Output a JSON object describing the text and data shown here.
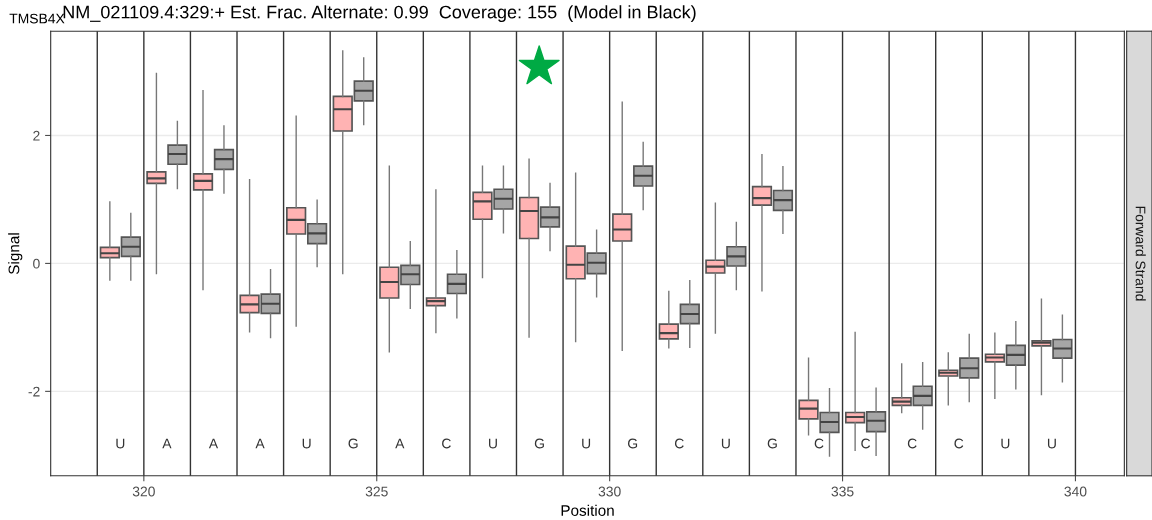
{
  "chart_data": {
    "type": "box",
    "title": "NM_021109.4:329:+ Est. Frac. Alternate: 0.99  Coverage: 155  (Model in Black)",
    "xlabel": "Position",
    "ylabel": "Signal",
    "xlim": [
      318,
      341.05
    ],
    "ylim": [
      -3.32,
      3.63
    ],
    "xticks": [
      320,
      325,
      330,
      335,
      340
    ],
    "yticks": [
      -2,
      0,
      2
    ],
    "grid": "y",
    "series": [
      {
        "color": "#ffb3b3",
        "x": [
          319.27,
          320.27,
          321.27,
          322.27,
          323.27,
          324.27,
          325.27,
          326.27,
          327.27,
          328.27,
          329.27,
          330.27,
          331.27,
          332.27,
          333.27,
          334.27,
          335.27,
          336.27,
          337.27,
          338.27,
          339.27
        ],
        "boxes": [
          {
            "low": -0.26,
            "q1": 0.09,
            "median": 0.16,
            "q3": 0.25,
            "high": 0.96
          },
          {
            "low": -0.16,
            "q1": 1.25,
            "median": 1.33,
            "q3": 1.43,
            "high": 2.97
          },
          {
            "low": -0.41,
            "q1": 1.15,
            "median": 1.29,
            "q3": 1.4,
            "high": 2.7
          },
          {
            "low": -1.07,
            "q1": -0.77,
            "median": -0.64,
            "q3": -0.5,
            "high": 1.31
          },
          {
            "low": -0.98,
            "q1": 0.46,
            "median": 0.68,
            "q3": 0.87,
            "high": 2.3
          },
          {
            "low": -0.16,
            "q1": 2.07,
            "median": 2.41,
            "q3": 2.61,
            "high": 3.32
          },
          {
            "low": -1.38,
            "q1": -0.54,
            "median": -0.29,
            "q3": -0.06,
            "high": 1.52
          },
          {
            "low": -1.08,
            "q1": -0.66,
            "median": -0.59,
            "q3": -0.54,
            "high": 1.15
          },
          {
            "low": -0.22,
            "q1": 0.69,
            "median": 0.97,
            "q3": 1.11,
            "high": 1.52
          },
          {
            "low": -1.15,
            "q1": 0.39,
            "median": 0.82,
            "q3": 1.03,
            "high": 1.63
          },
          {
            "low": -1.22,
            "q1": -0.24,
            "median": -0.02,
            "q3": 0.27,
            "high": 1.41
          },
          {
            "low": -1.36,
            "q1": 0.35,
            "median": 0.53,
            "q3": 0.77,
            "high": 2.52
          },
          {
            "low": -1.32,
            "q1": -1.18,
            "median": -1.09,
            "q3": -0.95,
            "high": -0.44
          },
          {
            "low": -1.09,
            "q1": -0.15,
            "median": -0.05,
            "q3": 0.05,
            "high": 0.94
          },
          {
            "low": -0.43,
            "q1": 0.91,
            "median": 1.02,
            "q3": 1.2,
            "high": 1.7
          },
          {
            "low": -2.68,
            "q1": -2.43,
            "median": -2.27,
            "q3": -2.14,
            "high": -1.48
          },
          {
            "low": -2.92,
            "q1": -2.49,
            "median": -2.4,
            "q3": -2.33,
            "high": -1.08
          },
          {
            "low": -2.33,
            "q1": -2.22,
            "median": -2.16,
            "q3": -2.1,
            "high": -1.57
          },
          {
            "low": -2.21,
            "q1": -1.76,
            "median": -1.71,
            "q3": -1.67,
            "high": -1.4
          },
          {
            "low": -2.11,
            "q1": -1.54,
            "median": -1.47,
            "q3": -1.42,
            "high": -1.09
          },
          {
            "low": -2.05,
            "q1": -1.29,
            "median": -1.24,
            "q3": -1.21,
            "high": -0.56
          }
        ]
      },
      {
        "color": "#a6a6a6",
        "x": [
          319.72,
          320.72,
          321.72,
          322.72,
          323.72,
          324.72,
          325.72,
          326.72,
          327.72,
          328.72,
          329.72,
          330.72,
          331.72,
          332.72,
          333.72,
          334.72,
          335.72,
          336.72,
          337.72,
          338.72,
          339.72
        ],
        "boxes": [
          {
            "low": -0.26,
            "q1": 0.11,
            "median": 0.26,
            "q3": 0.41,
            "high": 0.78
          },
          {
            "low": 1.17,
            "q1": 1.55,
            "median": 1.71,
            "q3": 1.85,
            "high": 2.22
          },
          {
            "low": 1.1,
            "q1": 1.47,
            "median": 1.63,
            "q3": 1.78,
            "high": 2.15
          },
          {
            "low": -1.16,
            "q1": -0.78,
            "median": -0.63,
            "q3": -0.48,
            "high": -0.1
          },
          {
            "low": -0.05,
            "q1": 0.31,
            "median": 0.47,
            "q3": 0.62,
            "high": 0.99
          },
          {
            "low": 2.17,
            "q1": 2.54,
            "median": 2.7,
            "q3": 2.85,
            "high": 3.21
          },
          {
            "low": -0.7,
            "q1": -0.33,
            "median": -0.17,
            "q3": -0.03,
            "high": 0.34
          },
          {
            "low": -0.85,
            "q1": -0.47,
            "median": -0.32,
            "q3": -0.17,
            "high": 0.2
          },
          {
            "low": 0.48,
            "q1": 0.85,
            "median": 1.01,
            "q3": 1.16,
            "high": 1.52
          },
          {
            "low": 0.2,
            "q1": 0.57,
            "median": 0.72,
            "q3": 0.88,
            "high": 1.25
          },
          {
            "low": -0.52,
            "q1": -0.16,
            "median": 0.01,
            "q3": 0.16,
            "high": 0.52
          },
          {
            "low": 0.84,
            "q1": 1.21,
            "median": 1.37,
            "q3": 1.52,
            "high": 1.89
          },
          {
            "low": -1.31,
            "q1": -0.94,
            "median": -0.79,
            "q3": -0.64,
            "high": -0.27
          },
          {
            "low": -0.41,
            "q1": -0.04,
            "median": 0.11,
            "q3": 0.26,
            "high": 0.64
          },
          {
            "low": 0.47,
            "q1": 0.83,
            "median": 0.99,
            "q3": 1.14,
            "high": 1.51
          },
          {
            "low": -3.01,
            "q1": -2.64,
            "median": -2.48,
            "q3": -2.33,
            "high": -1.96
          },
          {
            "low": -3.0,
            "q1": -2.63,
            "median": -2.46,
            "q3": -2.32,
            "high": -1.95
          },
          {
            "low": -2.59,
            "q1": -2.22,
            "median": -2.07,
            "q3": -1.92,
            "high": -1.55
          },
          {
            "low": -2.16,
            "q1": -1.79,
            "median": -1.64,
            "q3": -1.48,
            "high": -1.11
          },
          {
            "low": -1.96,
            "q1": -1.59,
            "median": -1.43,
            "q3": -1.28,
            "high": -0.91
          },
          {
            "low": -1.85,
            "q1": -1.48,
            "median": -1.33,
            "q3": -1.19,
            "high": -0.81
          }
        ]
      }
    ],
    "ref_lines": [
      {
        "axis": "x",
        "value": 319,
        "color": "#333333"
      },
      {
        "axis": "x",
        "value": 320,
        "color": "#333333"
      },
      {
        "axis": "x",
        "value": 321,
        "color": "#333333"
      },
      {
        "axis": "x",
        "value": 322,
        "color": "#333333"
      },
      {
        "axis": "x",
        "value": 323,
        "color": "#333333"
      },
      {
        "axis": "x",
        "value": 324,
        "color": "#333333"
      },
      {
        "axis": "x",
        "value": 325,
        "color": "#333333"
      },
      {
        "axis": "x",
        "value": 326,
        "color": "#333333"
      },
      {
        "axis": "x",
        "value": 327,
        "color": "#333333"
      },
      {
        "axis": "x",
        "value": 328,
        "color": "#333333"
      },
      {
        "axis": "x",
        "value": 329,
        "color": "#333333"
      },
      {
        "axis": "x",
        "value": 330,
        "color": "#333333"
      },
      {
        "axis": "x",
        "value": 331,
        "color": "#333333"
      },
      {
        "axis": "x",
        "value": 332,
        "color": "#333333"
      },
      {
        "axis": "x",
        "value": 333,
        "color": "#333333"
      },
      {
        "axis": "x",
        "value": 334,
        "color": "#333333"
      },
      {
        "axis": "x",
        "value": 335,
        "color": "#333333"
      },
      {
        "axis": "x",
        "value": 336,
        "color": "#333333"
      },
      {
        "axis": "x",
        "value": 337,
        "color": "#333333"
      },
      {
        "axis": "x",
        "value": 338,
        "color": "#333333"
      },
      {
        "axis": "x",
        "value": 339,
        "color": "#333333"
      },
      {
        "axis": "x",
        "value": 340,
        "color": "#333333"
      }
    ],
    "annotations": [
      "TMSB4X",
      "Forward Strand",
      "U",
      "A",
      "A",
      "A",
      "U",
      "G",
      "A",
      "C",
      "U",
      "G",
      "U",
      "G",
      "C",
      "U",
      "G",
      "C",
      "C",
      "C",
      "C",
      "U",
      "U"
    ]
  }
}
